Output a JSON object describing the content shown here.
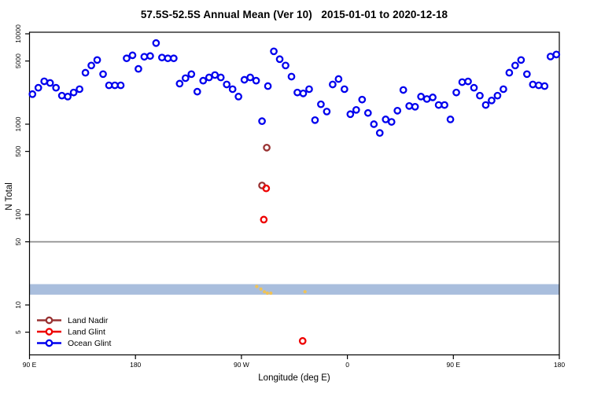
{
  "chart_data": {
    "type": "scatter",
    "title": "57.5S-52.5S Annual Mean (Ver 10)   2015-01-01 to 2020-12-18",
    "xlabel": "Longitude (deg E)",
    "ylabel": "N Total",
    "x_axis": {
      "range": [
        90,
        540
      ],
      "wraps_longitude": true,
      "ticks": [
        {
          "value": 90,
          "label": "90 E"
        },
        {
          "value": 180,
          "label": "180"
        },
        {
          "value": 270,
          "label": "90 W"
        },
        {
          "value": 360,
          "label": "0"
        },
        {
          "value": 450,
          "label": "90 E"
        },
        {
          "value": 540,
          "label": "180"
        }
      ]
    },
    "y_axis": {
      "scale": "log",
      "range": [
        3,
        10000
      ],
      "ticks": [
        10000,
        5000,
        1000,
        500,
        100,
        50,
        10,
        5
      ]
    },
    "grid": false,
    "reference_line": {
      "value": 50,
      "color": "#8f8f8f"
    },
    "band": {
      "value_min": 13,
      "value_max": 17,
      "color": "#a9bedd"
    },
    "legend_position": "bottom-left",
    "legend": [
      {
        "label": "Land Nadir",
        "color": "#993333"
      },
      {
        "label": "Land Glint",
        "color": "#ee0000"
      },
      {
        "label": "Ocean Glint",
        "color": "#0000ee"
      }
    ],
    "series": [
      {
        "name": "Ocean Glint",
        "color": "#0000ee",
        "marker": "open-circle",
        "points": [
          [
            92.5,
            2150
          ],
          [
            97.5,
            2530
          ],
          [
            102.5,
            2980
          ],
          [
            107.5,
            2860
          ],
          [
            112.5,
            2530
          ],
          [
            117.5,
            2070
          ],
          [
            122.5,
            2020
          ],
          [
            127.5,
            2240
          ],
          [
            132.5,
            2440
          ],
          [
            137.5,
            3710
          ],
          [
            142.5,
            4460
          ],
          [
            147.5,
            5130
          ],
          [
            152.5,
            3580
          ],
          [
            157.5,
            2690
          ],
          [
            162.5,
            2690
          ],
          [
            167.5,
            2690
          ],
          [
            172.5,
            5350
          ],
          [
            177.5,
            5780
          ],
          [
            182.5,
            4090
          ],
          [
            187.5,
            5570
          ],
          [
            192.5,
            5680
          ],
          [
            197.5,
            7900
          ],
          [
            202.5,
            5460
          ],
          [
            207.5,
            5350
          ],
          [
            212.5,
            5350
          ],
          [
            217.5,
            2810
          ],
          [
            222.5,
            3230
          ],
          [
            227.5,
            3580
          ],
          [
            232.5,
            2290
          ],
          [
            237.5,
            3030
          ],
          [
            242.5,
            3290
          ],
          [
            247.5,
            3500
          ],
          [
            252.5,
            3290
          ],
          [
            257.5,
            2750
          ],
          [
            262.5,
            2440
          ],
          [
            267.5,
            2020
          ],
          [
            272.5,
            3100
          ],
          [
            277.5,
            3290
          ],
          [
            282.5,
            3030
          ],
          [
            287.5,
            1080
          ],
          [
            292.5,
            2640
          ],
          [
            297.5,
            6400
          ],
          [
            302.5,
            5240
          ],
          [
            307.5,
            4460
          ],
          [
            312.5,
            3360
          ],
          [
            317.5,
            2240
          ],
          [
            322.5,
            2190
          ],
          [
            327.5,
            2440
          ],
          [
            332.5,
            1110
          ],
          [
            337.5,
            1660
          ],
          [
            342.5,
            1380
          ],
          [
            347.5,
            2750
          ],
          [
            352.5,
            3160
          ],
          [
            357.5,
            2440
          ],
          [
            362.5,
            1290
          ],
          [
            367.5,
            1440
          ],
          [
            372.5,
            1870
          ],
          [
            377.5,
            1330
          ],
          [
            382.5,
            1000
          ],
          [
            387.5,
            800
          ],
          [
            392.5,
            1130
          ],
          [
            397.5,
            1060
          ],
          [
            402.5,
            1410
          ],
          [
            407.5,
            2390
          ],
          [
            412.5,
            1590
          ],
          [
            417.5,
            1560
          ],
          [
            422.5,
            2020
          ],
          [
            427.5,
            1900
          ],
          [
            432.5,
            1980
          ],
          [
            437.5,
            1630
          ],
          [
            442.5,
            1630
          ],
          [
            447.5,
            1130
          ],
          [
            452.5,
            2240
          ],
          [
            457.5,
            2920
          ],
          [
            462.5,
            2970
          ],
          [
            467.5,
            2530
          ],
          [
            472.5,
            2070
          ],
          [
            477.5,
            1630
          ],
          [
            482.5,
            1830
          ],
          [
            487.5,
            2070
          ],
          [
            492.5,
            2440
          ],
          [
            497.5,
            3710
          ],
          [
            502.5,
            4460
          ],
          [
            507.5,
            5130
          ],
          [
            512.5,
            3580
          ],
          [
            517.5,
            2750
          ],
          [
            522.5,
            2690
          ],
          [
            527.5,
            2640
          ],
          [
            532.5,
            5600
          ],
          [
            537.5,
            5900
          ]
        ]
      },
      {
        "name": "Land Nadir",
        "color": "#993333",
        "marker": "open-circle",
        "points": [
          [
            291.5,
            550
          ],
          [
            287.5,
            210
          ]
        ]
      },
      {
        "name": "Land Glint",
        "color": "#ee0000",
        "marker": "open-circle",
        "points": [
          [
            291,
            195
          ],
          [
            289,
            88
          ],
          [
            322,
            4
          ]
        ]
      },
      {
        "name": "Unlabeled yellow marks",
        "color": "#f0c356",
        "marker": "small-dot",
        "points": [
          [
            283,
            16
          ],
          [
            286.5,
            15
          ],
          [
            289.5,
            14
          ],
          [
            292,
            13.5
          ],
          [
            295,
            13.5
          ],
          [
            324,
            14
          ]
        ]
      }
    ]
  }
}
